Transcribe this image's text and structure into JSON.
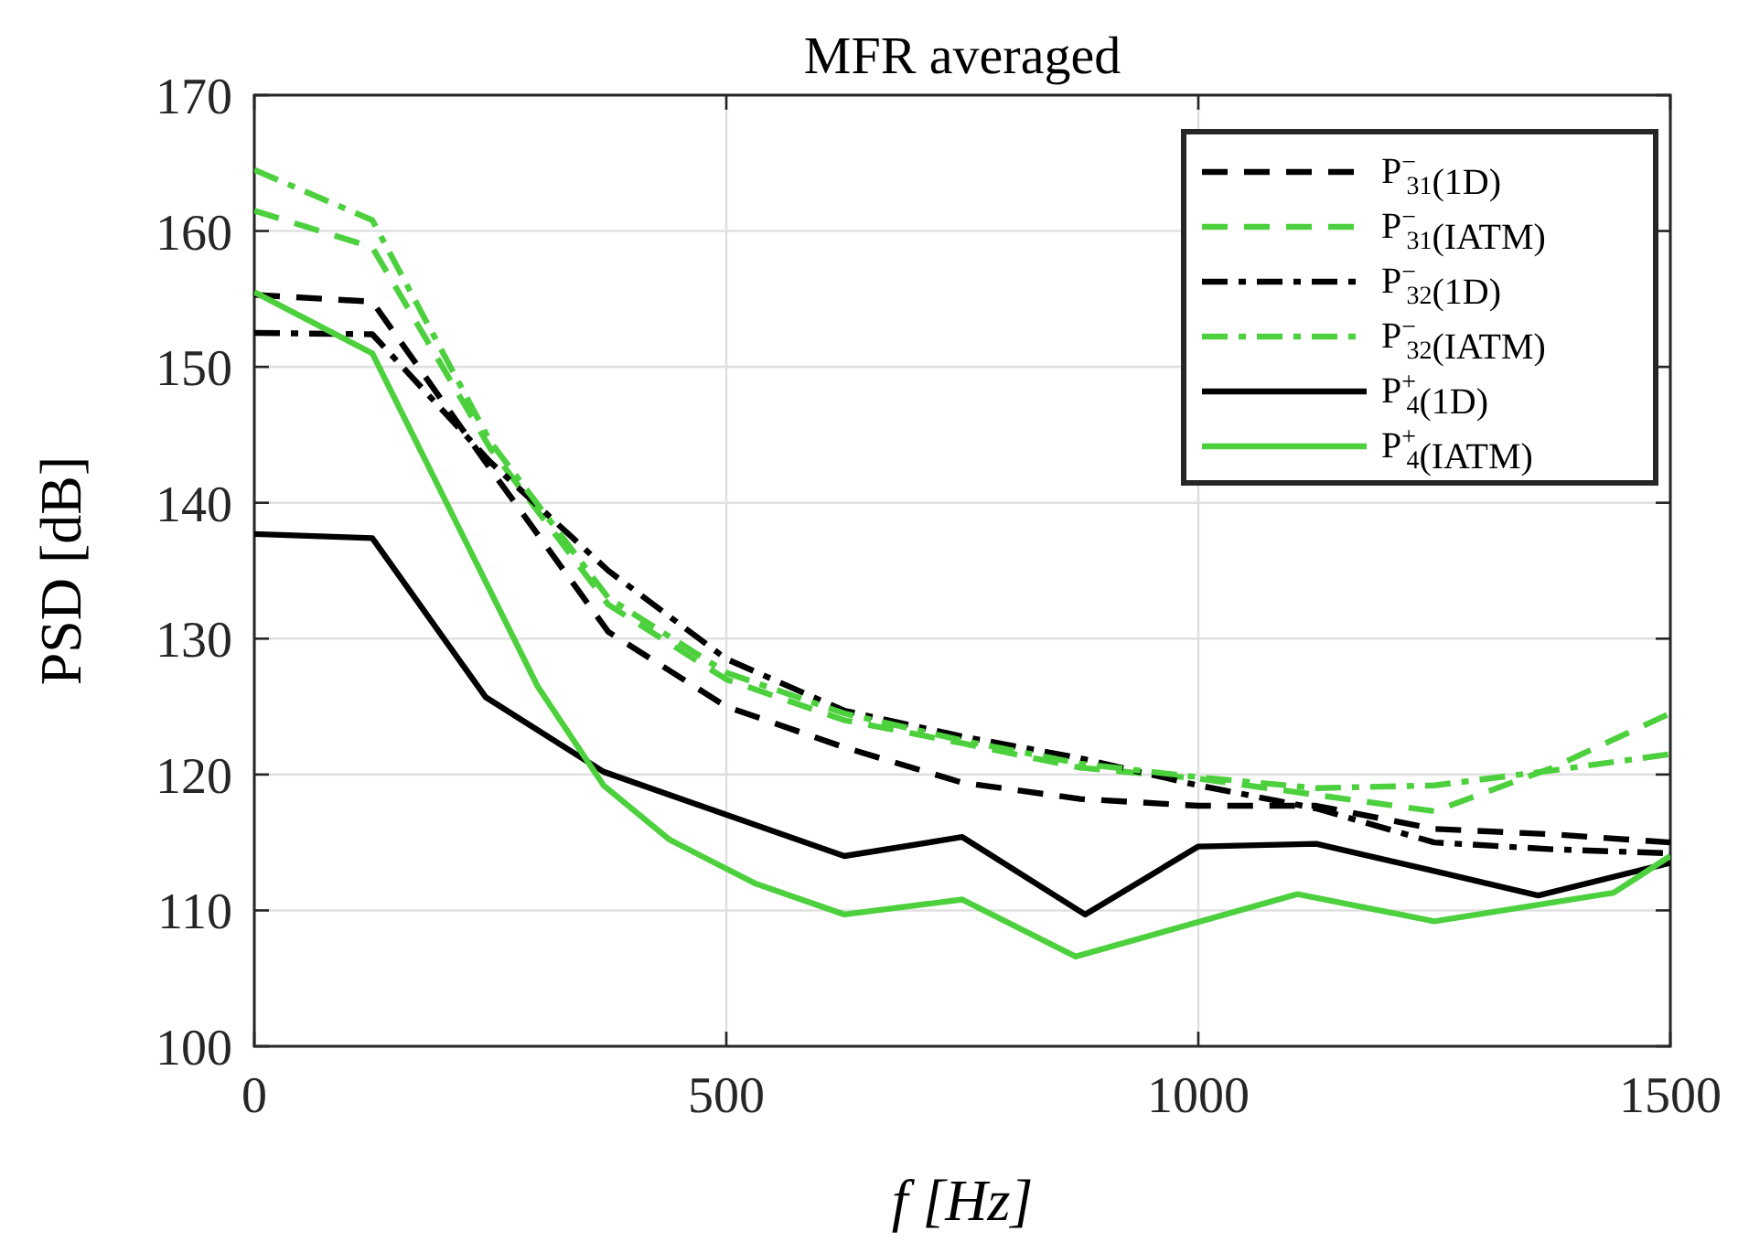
{
  "chart_data": {
    "type": "line",
    "title": "MFR averaged",
    "xlabel": "f [Hz]",
    "ylabel": "PSD [dB]",
    "xlim": [
      0,
      1500
    ],
    "xticks": [
      0,
      500,
      1000,
      1500
    ],
    "ylim": [
      100,
      170
    ],
    "yticks": [
      100,
      110,
      120,
      130,
      140,
      150,
      160,
      170
    ],
    "grid": true,
    "legend": "top right",
    "marker": "none",
    "series": [
      {
        "name": "P$^{−}$$_{31}$(1D)",
        "color": "#000000",
        "line_style": "dashed",
        "x": [
          0,
          125,
          250,
          375,
          500,
          625,
          750,
          875,
          1000,
          1125,
          1250,
          1375,
          1500
        ],
        "values": [
          155.3,
          154.8,
          142.5,
          130.5,
          125,
          122,
          119.4,
          118.2,
          117.7,
          117.7,
          116,
          115.6,
          115
        ]
      },
      {
        "name": "P$^{−}$$_{31}$(IATM)",
        "color": "#4dd03d",
        "line_style": "dashed",
        "x": [
          0,
          125,
          250,
          375,
          500,
          625,
          750,
          875,
          1000,
          1125,
          1250,
          1375,
          1500
        ],
        "values": [
          161.5,
          158.8,
          144,
          132.5,
          127,
          124,
          122.3,
          120.5,
          119.7,
          118.5,
          117.3,
          120.5,
          124.5
        ]
      },
      {
        "name": "P$^{−}$$_{32}$(1D)",
        "color": "#000000",
        "line_style": "dashdot",
        "x": [
          0,
          125,
          250,
          375,
          500,
          625,
          750,
          875,
          1000,
          1125,
          1250,
          1375,
          1500
        ],
        "values": [
          152.5,
          152.4,
          143,
          135,
          128.5,
          124.7,
          122.8,
          121.2,
          119.2,
          117.5,
          115,
          114.5,
          114.2
        ]
      },
      {
        "name": "P$^{−}$$_{32}$(IATM)",
        "color": "#4dd03d",
        "line_style": "dashdot",
        "x": [
          0,
          125,
          250,
          375,
          500,
          625,
          750,
          875,
          1000,
          1125,
          1250,
          1375,
          1500
        ],
        "values": [
          164.5,
          160.8,
          144.5,
          133,
          127.5,
          124.5,
          122.5,
          120.8,
          119.8,
          119,
          119.2,
          120.3,
          121.5
        ]
      },
      {
        "name": "P$^{+}$$_{4}$(1D)",
        "color": "#000000",
        "line_style": "solid",
        "x": [
          0,
          125,
          245,
          370,
          625,
          750,
          880,
          1000,
          1125,
          1250,
          1360,
          1500
        ],
        "values": [
          137.7,
          137.4,
          125.7,
          120.2,
          114,
          115.4,
          109.7,
          114.7,
          114.9,
          112.9,
          111.1,
          113.5
        ]
      },
      {
        "name": "P$^{+}$$_{4}$(IATM)",
        "color": "#4dd03d",
        "line_style": "solid",
        "x": [
          0,
          125,
          250,
          300,
          370,
          440,
          530,
          625,
          750,
          870,
          1105,
          1250,
          1440,
          1500
        ],
        "values": [
          155.5,
          151,
          133.5,
          126.5,
          119.2,
          115.2,
          112,
          109.7,
          110.8,
          106.6,
          111.2,
          109.2,
          111.3,
          114
        ]
      }
    ]
  }
}
